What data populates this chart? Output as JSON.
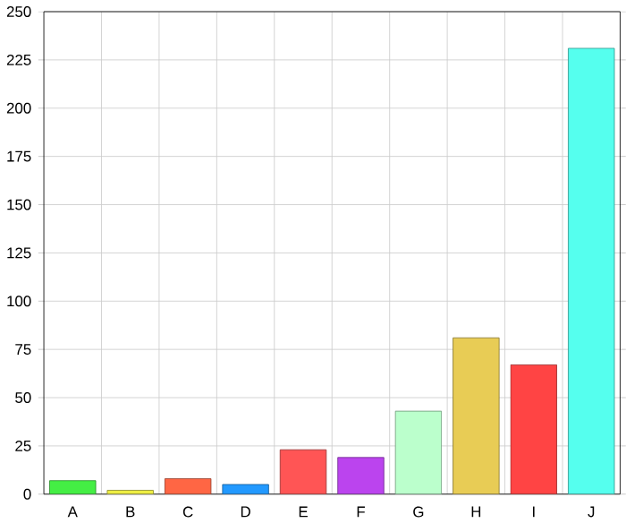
{
  "chart_data": {
    "type": "bar",
    "categories": [
      "A",
      "B",
      "C",
      "D",
      "E",
      "F",
      "G",
      "H",
      "I",
      "J"
    ],
    "values": [
      7,
      2,
      8,
      5,
      23,
      19,
      43,
      81,
      67,
      231
    ],
    "colors": [
      "#44ee44",
      "#eeee44",
      "#ff6644",
      "#2299ff",
      "#ff5555",
      "#bb44ee",
      "#bbffcc",
      "#e8cc55",
      "#ff4444",
      "#55ffee"
    ],
    "ylim": [
      0,
      250
    ],
    "yticks": [
      0,
      25,
      50,
      75,
      100,
      125,
      150,
      175,
      200,
      225,
      250
    ],
    "grid": true
  }
}
